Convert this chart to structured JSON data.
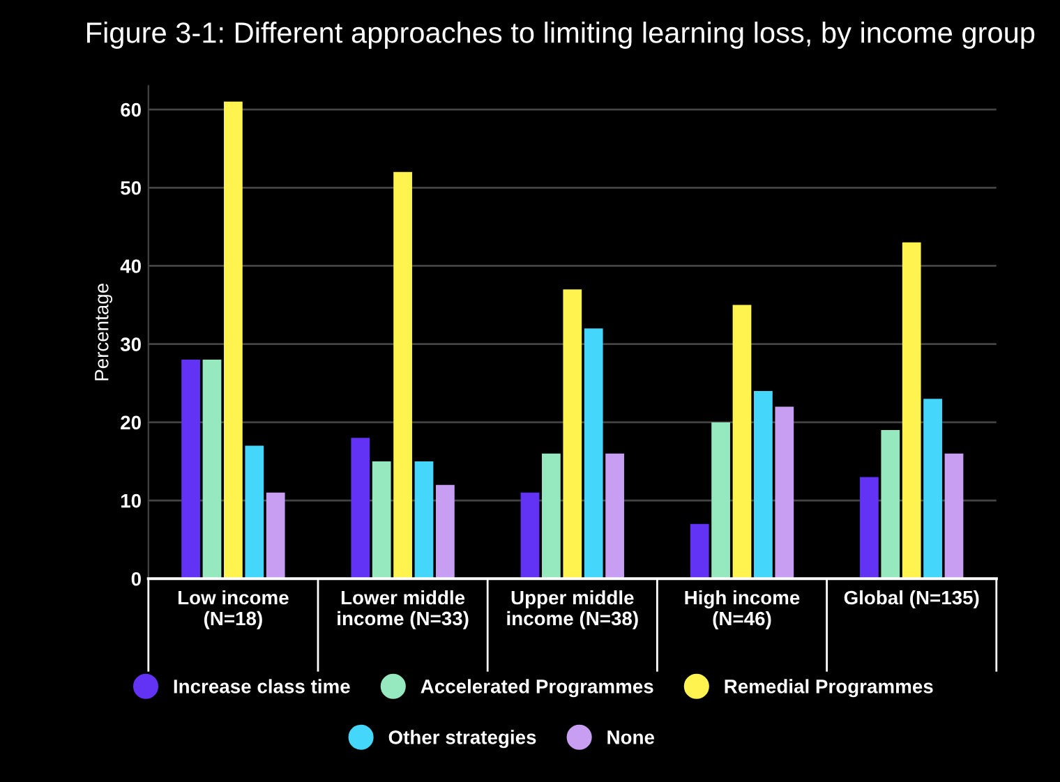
{
  "chart_data": {
    "type": "bar",
    "title": "Figure 3-1: Different approaches to limiting learning loss, by income group",
    "ylabel": "Percentage",
    "categories": [
      "Low income\n(N=18)",
      "Lower middle\nincome (N=33)",
      "Upper middle\nincome (N=38)",
      "High income\n(N=46)",
      "Global (N=135)"
    ],
    "series": [
      {
        "name": "Increase class time",
        "color": "#6233f5",
        "values": [
          28,
          18,
          11,
          7,
          13
        ]
      },
      {
        "name": "Accelerated Programmes",
        "color": "#96e8bf",
        "values": [
          28,
          15,
          16,
          20,
          19
        ]
      },
      {
        "name": "Remedial Programmes",
        "color": "#fff44f",
        "values": [
          61,
          52,
          37,
          35,
          43
        ]
      },
      {
        "name": "Other strategies",
        "color": "#44d7fb",
        "values": [
          17,
          15,
          32,
          24,
          23
        ]
      },
      {
        "name": "None",
        "color": "#c89ef2",
        "values": [
          11,
          12,
          16,
          22,
          16
        ]
      }
    ],
    "ylim": [
      0,
      63
    ],
    "yticks": [
      0,
      10,
      20,
      30,
      40,
      50,
      60
    ],
    "grid": "y",
    "legend": "bottom"
  }
}
